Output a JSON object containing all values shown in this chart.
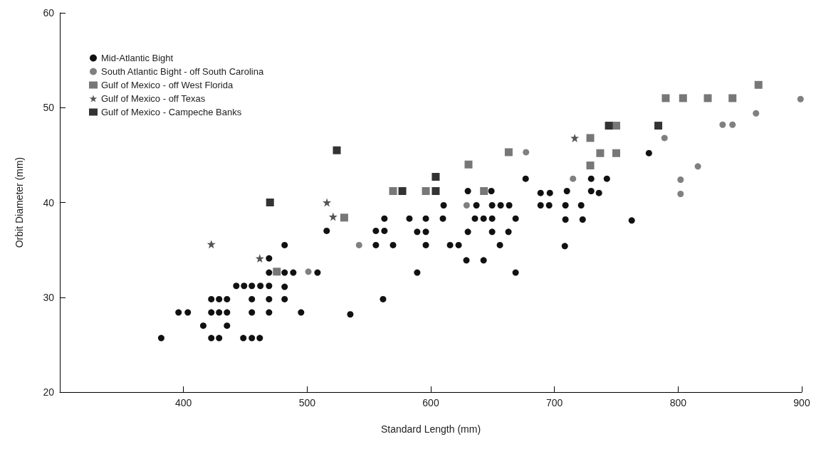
{
  "chart_data": {
    "type": "scatter",
    "xlabel": "Standard Length (mm)",
    "ylabel": "Orbit Diameter (mm)",
    "xlim": [
      300,
      900
    ],
    "xticks": [
      400,
      500,
      600,
      700,
      800,
      900
    ],
    "ylim": [
      20,
      60
    ],
    "yticks": [
      20,
      30,
      40,
      50,
      60
    ],
    "grid": false,
    "legend": "top left",
    "series": [
      {
        "name": "Mid-Atlantic Bight",
        "color": "#111111",
        "marker": "circle",
        "x": [
          382,
          396,
          403.5,
          416,
          422.5,
          422.5,
          422.5,
          428.8,
          428.8,
          428.8,
          435.2,
          435.2,
          435.2,
          442.7,
          449,
          448.4,
          455.3,
          455.3,
          455.3,
          455.3,
          461.7,
          462.2,
          469.2,
          469.2,
          469.2,
          469.2,
          469.2,
          481.8,
          481.8,
          481.8,
          481.8,
          488.8,
          495.1,
          508.4,
          515.8,
          534.9,
          555.6,
          555.6,
          561.4,
          562.5,
          562.5,
          569.5,
          582.7,
          589,
          589,
          596,
          596,
          596,
          609.8,
          610.4,
          615.6,
          622.5,
          628.8,
          630,
          630,
          635.7,
          636.9,
          642.7,
          642.7,
          649,
          649.6,
          649.6,
          649.6,
          655.9,
          656.5,
          662.8,
          663.4,
          668.6,
          668.6,
          676.7,
          688.8,
          688.8,
          695.7,
          696.3,
          708.4,
          708.9,
          708.9,
          710.1,
          721.6,
          722.8,
          729.7,
          729.7,
          736,
          742.4,
          762.5,
          776.4
        ],
        "values": [
          25.7,
          28.4,
          28.4,
          27.0,
          29.8,
          28.4,
          25.7,
          29.8,
          28.4,
          25.7,
          29.8,
          28.4,
          27.0,
          31.2,
          31.2,
          25.7,
          31.2,
          29.8,
          28.4,
          25.7,
          25.7,
          31.2,
          34.1,
          32.6,
          31.2,
          29.8,
          28.4,
          35.5,
          32.6,
          31.1,
          29.8,
          32.6,
          28.4,
          32.6,
          37.0,
          28.2,
          37.0,
          35.5,
          29.8,
          37.0,
          38.3,
          35.5,
          38.3,
          36.9,
          32.6,
          38.3,
          36.9,
          35.5,
          38.3,
          39.7,
          35.5,
          35.5,
          33.9,
          41.2,
          36.9,
          38.3,
          39.7,
          38.3,
          33.9,
          41.2,
          39.7,
          38.3,
          36.9,
          35.5,
          39.7,
          36.9,
          39.7,
          38.3,
          32.6,
          42.5,
          41.0,
          39.7,
          39.7,
          41.0,
          35.4,
          39.7,
          38.2,
          41.2,
          39.7,
          38.2,
          42.5,
          41.2,
          41.0,
          42.5,
          38.1,
          45.2
        ]
      },
      {
        "name": "South Atlantic Bight - off South Carolina",
        "color": "#808080",
        "marker": "circle",
        "x": [
          501,
          542,
          629,
          677,
          715,
          789,
          802,
          802,
          816,
          836,
          844,
          863,
          899
        ],
        "values": [
          32.7,
          35.5,
          39.7,
          45.3,
          42.5,
          46.8,
          42.4,
          40.9,
          43.8,
          48.2,
          48.2,
          49.4,
          50.9
        ]
      },
      {
        "name": "Gulf of Mexico - off West Florida",
        "color": "#777777",
        "marker": "square",
        "x": [
          475.5,
          530,
          569.5,
          596,
          630.5,
          643,
          663,
          729,
          729,
          737,
          750,
          750,
          790,
          804,
          824,
          844,
          865
        ],
        "values": [
          32.7,
          38.4,
          41.2,
          41.2,
          44.0,
          41.2,
          45.3,
          46.8,
          43.9,
          45.2,
          45.2,
          48.1,
          51.0,
          51.0,
          51.0,
          51.0,
          52.4
        ]
      },
      {
        "name": "Gulf of Mexico - off Texas",
        "color": "#555555",
        "marker": "star",
        "x": [
          422.5,
          461.7,
          516,
          521,
          716.4
        ],
        "values": [
          35.6,
          34.1,
          40.0,
          38.5,
          46.8
        ]
      },
      {
        "name": "Gulf of Mexico - Campeche Banks",
        "color": "#333333",
        "marker": "square",
        "x": [
          470,
          524,
          577,
          604,
          604,
          744,
          784
        ],
        "values": [
          40.0,
          45.5,
          41.2,
          41.2,
          42.7,
          48.1,
          48.1
        ]
      }
    ]
  }
}
